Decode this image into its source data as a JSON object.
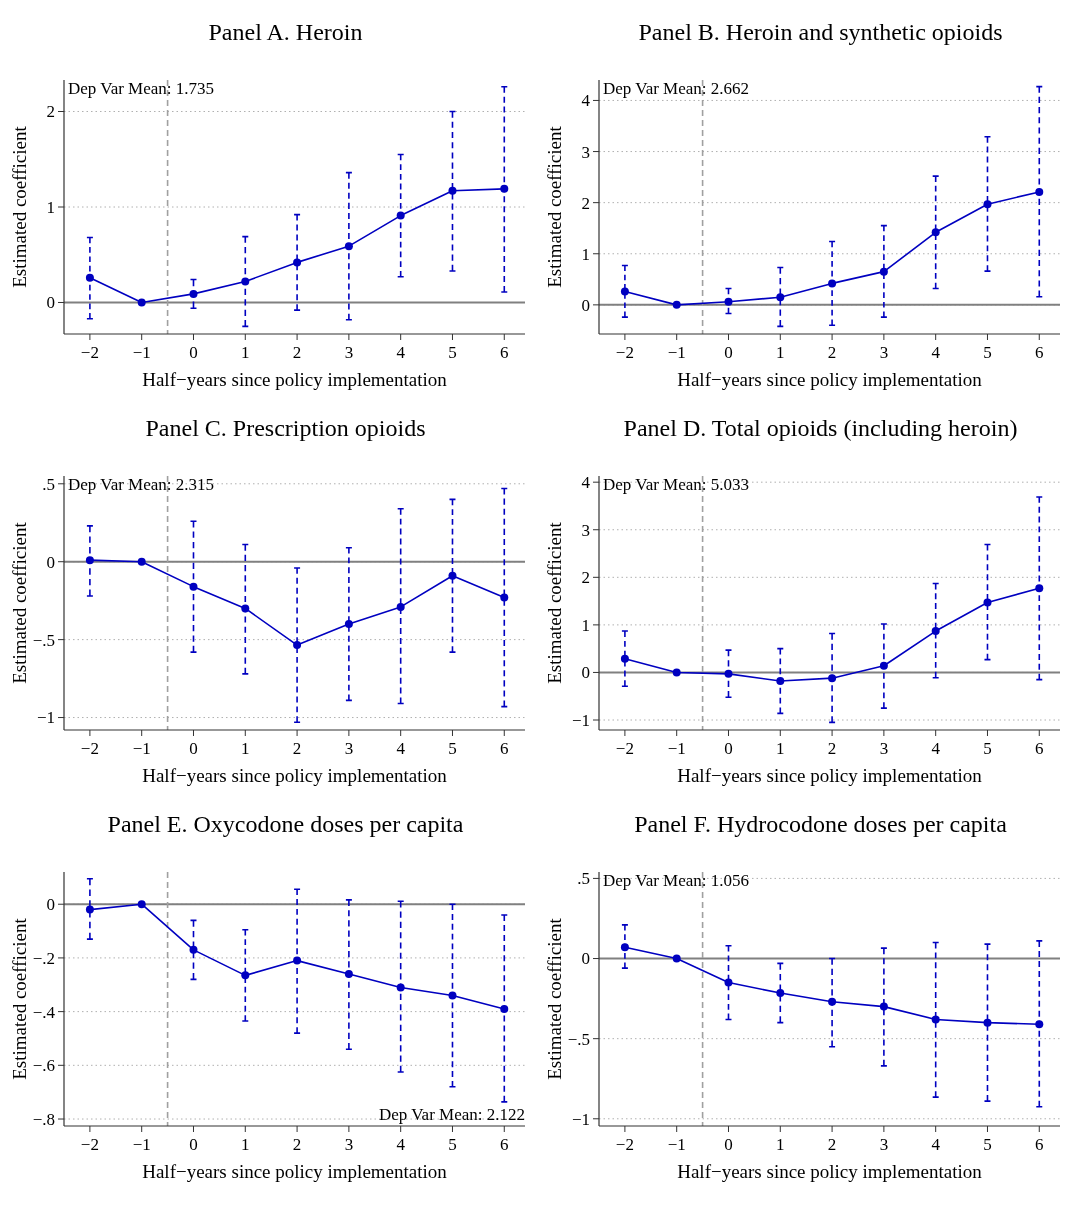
{
  "chart_data": [
    {
      "type": "line",
      "title": "Panel A. Heroin",
      "xlabel": "Half−years since policy implementation",
      "ylabel": "Estimated coefficient",
      "x": [
        -2,
        -1,
        0,
        1,
        2,
        3,
        4,
        5,
        6
      ],
      "xlim": [
        -2.5,
        6.4
      ],
      "xticks": [
        -2,
        -1,
        0,
        1,
        2,
        3,
        4,
        5,
        6
      ],
      "ylim": [
        -0.33,
        2.33
      ],
      "yticks": [
        0,
        1,
        2
      ],
      "grid": "y",
      "marker": "circle",
      "line_style": "solid",
      "annotations": [
        "Dep Var Mean: 1.735"
      ],
      "ref_lines": [
        {
          "axis": "y",
          "value": 0,
          "color": "#808080",
          "line_style": "solid"
        },
        {
          "axis": "x",
          "value": -0.5,
          "color": "#a0a0a0",
          "line_style": "dashed"
        }
      ],
      "series": [
        {
          "color": "#0000c0",
          "values": [
            0.26,
            0,
            0.09,
            0.22,
            0.42,
            0.59,
            0.91,
            1.17,
            1.19
          ],
          "errors": [
            [
              -0.17,
              0.68
            ],
            null,
            [
              -0.06,
              0.24
            ],
            [
              -0.25,
              0.69
            ],
            [
              -0.08,
              0.92
            ],
            [
              -0.18,
              1.36
            ],
            [
              0.27,
              1.55
            ],
            [
              0.33,
              2.0
            ],
            [
              0.11,
              2.26
            ]
          ]
        }
      ]
    },
    {
      "type": "line",
      "title": "Panel B. Heroin and synthetic opioids",
      "xlabel": "Half−years since policy implementation",
      "ylabel": "Estimated coefficient",
      "x": [
        -2,
        -1,
        0,
        1,
        2,
        3,
        4,
        5,
        6
      ],
      "xlim": [
        -2.5,
        6.4
      ],
      "xticks": [
        -2,
        -1,
        0,
        1,
        2,
        3,
        4,
        5,
        6
      ],
      "ylim": [
        -0.57,
        4.4
      ],
      "yticks": [
        0,
        1,
        2,
        3,
        4
      ],
      "grid": "y",
      "marker": "circle",
      "line_style": "solid",
      "annotations": [
        "Dep Var Mean: 2.662"
      ],
      "ref_lines": [
        {
          "axis": "y",
          "value": 0,
          "color": "#808080",
          "line_style": "solid"
        },
        {
          "axis": "x",
          "value": -0.5,
          "color": "#a0a0a0",
          "line_style": "dashed"
        }
      ],
      "series": [
        {
          "color": "#0000c0",
          "values": [
            0.26,
            0,
            0.06,
            0.15,
            0.42,
            0.65,
            1.42,
            1.97,
            2.21
          ],
          "errors": [
            [
              -0.24,
              0.77
            ],
            null,
            [
              -0.17,
              0.32
            ],
            [
              -0.42,
              0.73
            ],
            [
              -0.4,
              1.24
            ],
            [
              -0.24,
              1.55
            ],
            [
              0.32,
              2.52
            ],
            [
              0.66,
              3.29
            ],
            [
              0.16,
              4.27
            ]
          ]
        }
      ]
    },
    {
      "type": "line",
      "title": "Panel C. Prescription opioids",
      "xlabel": "Half−years since policy implementation",
      "ylabel": "Estimated coefficient",
      "x": [
        -2,
        -1,
        0,
        1,
        2,
        3,
        4,
        5,
        6
      ],
      "xlim": [
        -2.5,
        6.4
      ],
      "xticks": [
        -2,
        -1,
        0,
        1,
        2,
        3,
        4,
        5,
        6
      ],
      "ylim": [
        -1.08,
        0.55
      ],
      "yticks": [
        {
          "value": -1,
          "label": "−1"
        },
        {
          "value": -0.5,
          "label": "−.5"
        },
        0,
        {
          "value": 0.5,
          "label": ".5"
        }
      ],
      "grid": "y",
      "marker": "circle",
      "line_style": "solid",
      "annotations": [
        "Dep Var Mean: 2.315"
      ],
      "ref_lines": [
        {
          "axis": "y",
          "value": 0,
          "color": "#808080",
          "line_style": "solid"
        },
        {
          "axis": "x",
          "value": -0.5,
          "color": "#a0a0a0",
          "line_style": "dashed"
        }
      ],
      "series": [
        {
          "color": "#0000c0",
          "values": [
            0.01,
            0,
            -0.16,
            -0.3,
            -0.535,
            -0.4,
            -0.29,
            -0.09,
            -0.23
          ],
          "errors": [
            [
              -0.22,
              0.23
            ],
            null,
            [
              -0.58,
              0.26
            ],
            [
              -0.72,
              0.11
            ],
            [
              -1.03,
              -0.04
            ],
            [
              -0.89,
              0.09
            ],
            [
              -0.91,
              0.34
            ],
            [
              -0.58,
              0.4
            ],
            [
              -0.93,
              0.47
            ]
          ]
        }
      ]
    },
    {
      "type": "line",
      "title": "Panel D. Total opioids (including heroin)",
      "xlabel": "Half−years since policy implementation",
      "ylabel": "Estimated coefficient",
      "x": [
        -2,
        -1,
        0,
        1,
        2,
        3,
        4,
        5,
        6
      ],
      "xlim": [
        -2.5,
        6.4
      ],
      "xticks": [
        -2,
        -1,
        0,
        1,
        2,
        3,
        4,
        5,
        6
      ],
      "ylim": [
        -1.21,
        4.13
      ],
      "yticks": [
        {
          "value": -1,
          "label": "−1"
        },
        0,
        1,
        2,
        3,
        4
      ],
      "grid": "y",
      "marker": "circle",
      "line_style": "solid",
      "annotations": [
        "Dep Var Mean: 5.033"
      ],
      "ref_lines": [
        {
          "axis": "y",
          "value": 0,
          "color": "#808080",
          "line_style": "solid"
        },
        {
          "axis": "x",
          "value": -0.5,
          "color": "#a0a0a0",
          "line_style": "dashed"
        }
      ],
      "series": [
        {
          "color": "#0000c0",
          "values": [
            0.29,
            0,
            -0.03,
            -0.18,
            -0.12,
            0.14,
            0.87,
            1.47,
            1.77
          ],
          "errors": [
            [
              -0.29,
              0.87
            ],
            null,
            [
              -0.52,
              0.47
            ],
            [
              -0.86,
              0.5
            ],
            [
              -1.05,
              0.82
            ],
            [
              -0.75,
              1.02
            ],
            [
              -0.11,
              1.87
            ],
            [
              0.27,
              2.69
            ],
            [
              -0.15,
              3.69
            ]
          ]
        }
      ]
    },
    {
      "type": "line",
      "title": "Panel E. Oxycodone doses per capita",
      "xlabel": "Half−years since policy implementation",
      "ylabel": "Estimated coefficient",
      "x": [
        -2,
        -1,
        0,
        1,
        2,
        3,
        4,
        5,
        6
      ],
      "xlim": [
        -2.5,
        6.4
      ],
      "xticks": [
        -2,
        -1,
        0,
        1,
        2,
        3,
        4,
        5,
        6
      ],
      "ylim": [
        -0.826,
        0.12
      ],
      "yticks": [
        {
          "value": -0.8,
          "label": "−.8"
        },
        {
          "value": -0.6,
          "label": "−.6"
        },
        {
          "value": -0.4,
          "label": "−.4"
        },
        {
          "value": -0.2,
          "label": "−.2"
        },
        0
      ],
      "grid": "y",
      "marker": "circle",
      "line_style": "solid",
      "annotations": [
        "Dep Var Mean: 2.122"
      ],
      "ref_lines": [
        {
          "axis": "y",
          "value": 0,
          "color": "#808080",
          "line_style": "solid"
        },
        {
          "axis": "x",
          "value": -0.5,
          "color": "#a0a0a0",
          "line_style": "dashed"
        }
      ],
      "series": [
        {
          "color": "#0000c0",
          "values": [
            -0.02,
            0,
            -0.17,
            -0.265,
            -0.21,
            -0.26,
            -0.31,
            -0.34,
            -0.39
          ],
          "errors": [
            [
              -0.13,
              0.095
            ],
            null,
            [
              -0.28,
              -0.06
            ],
            [
              -0.435,
              -0.095
            ],
            [
              -0.48,
              0.056
            ],
            [
              -0.54,
              0.016
            ],
            [
              -0.625,
              0.011
            ],
            [
              -0.68,
              0.0
            ],
            [
              -0.736,
              -0.04
            ]
          ]
        }
      ]
    },
    {
      "type": "line",
      "title": "Panel F. Hydrocodone doses per capita",
      "xlabel": "Half−years since policy implementation",
      "ylabel": "Estimated coefficient",
      "x": [
        -2,
        -1,
        0,
        1,
        2,
        3,
        4,
        5,
        6
      ],
      "xlim": [
        -2.5,
        6.4
      ],
      "xticks": [
        -2,
        -1,
        0,
        1,
        2,
        3,
        4,
        5,
        6
      ],
      "ylim": [
        -1.045,
        0.54
      ],
      "yticks": [
        {
          "value": -1,
          "label": "−1"
        },
        {
          "value": -0.5,
          "label": "−.5"
        },
        0,
        {
          "value": 0.5,
          "label": ".5"
        }
      ],
      "grid": "y",
      "marker": "circle",
      "line_style": "solid",
      "annotations": [
        "Dep Var Mean: 1.056"
      ],
      "ref_lines": [
        {
          "axis": "y",
          "value": 0,
          "color": "#808080",
          "line_style": "solid"
        },
        {
          "axis": "x",
          "value": -0.5,
          "color": "#a0a0a0",
          "line_style": "dashed"
        }
      ],
      "series": [
        {
          "color": "#0000c0",
          "values": [
            0.07,
            0,
            -0.15,
            -0.215,
            -0.27,
            -0.3,
            -0.38,
            -0.4,
            -0.41
          ],
          "errors": [
            [
              -0.06,
              0.21
            ],
            null,
            [
              -0.38,
              0.08
            ],
            [
              -0.4,
              -0.03
            ],
            [
              -0.55,
              0.0
            ],
            [
              -0.67,
              0.065
            ],
            [
              -0.865,
              0.1
            ],
            [
              -0.89,
              0.09
            ],
            [
              -0.925,
              0.11
            ]
          ]
        }
      ]
    }
  ]
}
